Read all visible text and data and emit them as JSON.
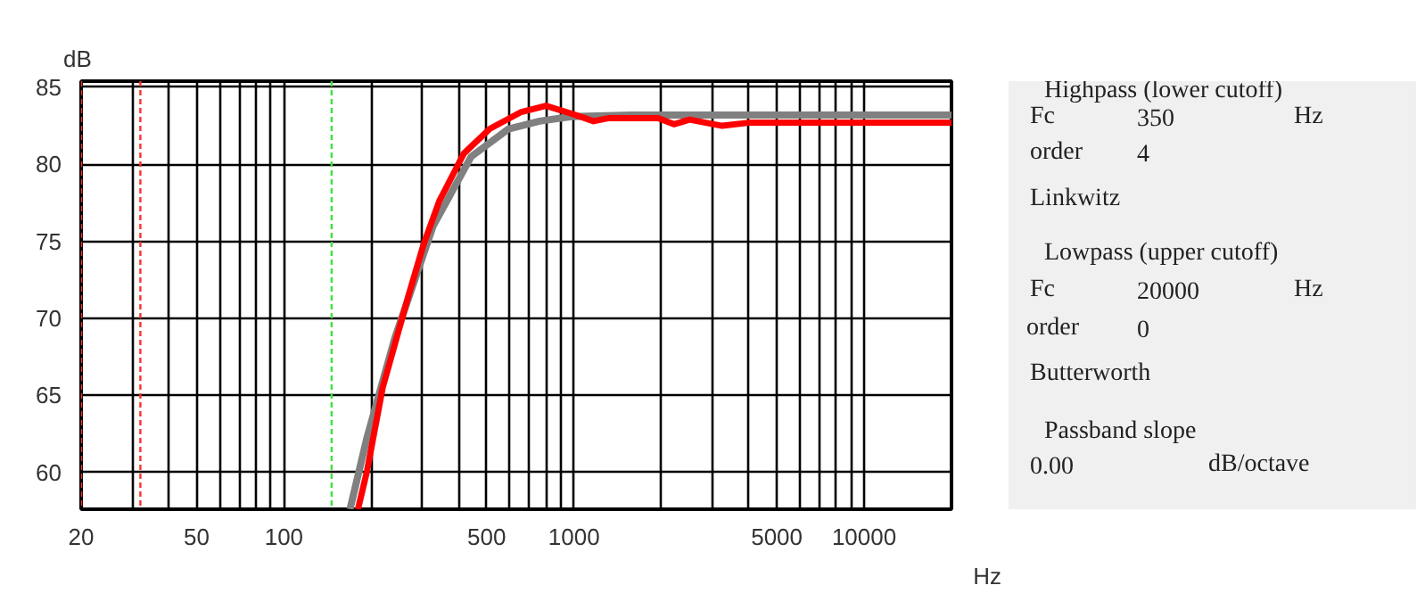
{
  "chart_data": [
    {
      "type": "line",
      "xlabel": "Hz",
      "ylabel": "dB",
      "log": "x",
      "grid": true,
      "xlim": [
        20,
        20000
      ],
      "ylim": [
        57.6,
        85.4
      ],
      "xticks": [
        20,
        {
          "value": 30,
          "label": null
        },
        {
          "value": 40,
          "label": null
        },
        50,
        {
          "value": 60,
          "label": null
        },
        {
          "value": 70,
          "label": null
        },
        {
          "value": 80,
          "label": null
        },
        {
          "value": 90,
          "label": null
        },
        100,
        {
          "value": 200,
          "label": null
        },
        {
          "value": 300,
          "label": null
        },
        {
          "value": 400,
          "label": null
        },
        500,
        {
          "value": 600,
          "label": null
        },
        {
          "value": 700,
          "label": null
        },
        {
          "value": 800,
          "label": null
        },
        {
          "value": 900,
          "label": null
        },
        1000,
        {
          "value": 2000,
          "label": null
        },
        {
          "value": 3000,
          "label": null
        },
        {
          "value": 4000,
          "label": null
        },
        5000,
        {
          "value": 6000,
          "label": null
        },
        {
          "value": 7000,
          "label": null
        },
        {
          "value": 8000,
          "label": null
        },
        {
          "value": 9000,
          "label": null
        },
        10000,
        {
          "value": 20000,
          "label": null
        }
      ],
      "yticks": [
        60,
        65,
        70,
        75,
        80,
        85
      ],
      "ref_lines": [
        {
          "axis": "x",
          "value": 20,
          "color": "#ff3030",
          "line_style": "dashed"
        },
        {
          "axis": "x",
          "value": 32,
          "color": "#ff3030",
          "line_style": "dashed"
        },
        {
          "axis": "x",
          "value": 146,
          "color": "#40e040",
          "line_style": "dashed"
        }
      ],
      "series": [
        {
          "color": "#808080",
          "x": [
            169,
            193,
            241,
            327,
            442,
            595,
            760,
            977,
            1580,
            20000
          ],
          "values": [
            57.6,
            62.2,
            68.7,
            76.0,
            80.5,
            82.3,
            82.8,
            83.1,
            83.2,
            83.2
          ]
        },
        {
          "color": "#ff0000",
          "x": [
            180,
            193,
            219,
            269,
            303,
            343,
            417,
            512,
            658,
            800,
            977,
            1167,
            1320,
            1950,
            2210,
            2500,
            3240,
            4000,
            20000
          ],
          "values": [
            57.6,
            60.0,
            65.5,
            71.5,
            74.8,
            77.6,
            80.7,
            82.3,
            83.4,
            83.8,
            83.3,
            82.8,
            83.0,
            83.0,
            82.6,
            82.9,
            82.5,
            82.7,
            82.7
          ]
        }
      ]
    },
    {
      "type": "other",
      "annotations": [
        "Highpass (lower cutoff)",
        "Fc",
        "350",
        "Hz",
        "order",
        "4",
        "Linkwitz",
        "Lowpass (upper cutoff)",
        "Fc",
        "20000",
        "Hz",
        "order",
        "0",
        "Butterworth",
        "Passband slope",
        "0.00",
        "dB/octave"
      ]
    }
  ]
}
